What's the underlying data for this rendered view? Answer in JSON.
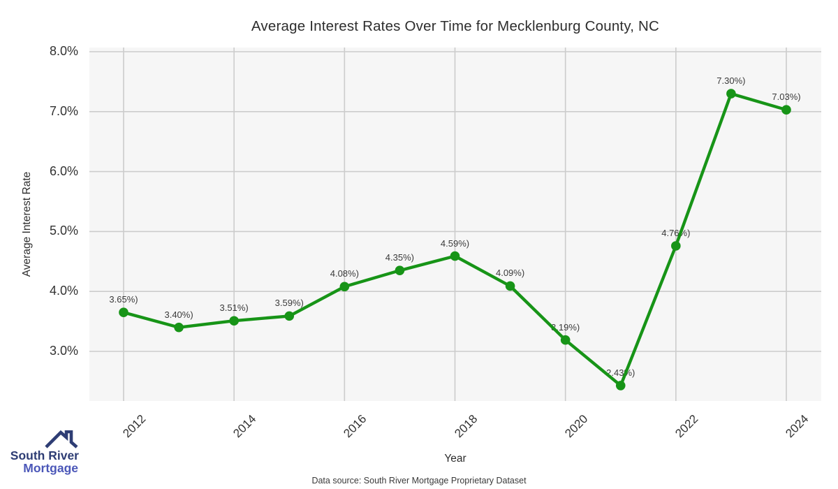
{
  "title": "Average Interest Rates Over Time for Mecklenburg County, NC",
  "chart_data": {
    "type": "line",
    "x": [
      2012,
      2013,
      2014,
      2015,
      2016,
      2017,
      2018,
      2019,
      2020,
      2021,
      2022,
      2023,
      2024
    ],
    "values": [
      3.65,
      3.4,
      3.51,
      3.59,
      4.08,
      4.35,
      4.59,
      4.09,
      3.19,
      2.43,
      4.76,
      7.3,
      7.03
    ],
    "point_labels": [
      "3.65%)",
      "3.40%)",
      "3.51%)",
      "3.59%)",
      "4.08%)",
      "4.35%)",
      "4.59%)",
      "4.09%)",
      "3.19%)",
      "2.43%)",
      "4.76%)",
      "7.30%)",
      "7.03%)"
    ],
    "title": "Average Interest Rates Over Time for Mecklenburg County, NC",
    "xlabel": "Year",
    "ylabel": "Average Interest Rate",
    "ylim": [
      2.17,
      8.07
    ],
    "xlim": [
      2011.38,
      2024.63
    ],
    "yticks": [
      {
        "value": 3.0,
        "label": "3.0%"
      },
      {
        "value": 4.0,
        "label": "4.0%"
      },
      {
        "value": 5.0,
        "label": "5.0%"
      },
      {
        "value": 6.0,
        "label": "6.0%"
      },
      {
        "value": 7.0,
        "label": "7.0%"
      },
      {
        "value": 8.0,
        "label": "8.0%"
      }
    ],
    "xticks": [
      {
        "value": 2012,
        "label": "2012"
      },
      {
        "value": 2014,
        "label": "2014"
      },
      {
        "value": 2016,
        "label": "2016"
      },
      {
        "value": 2018,
        "label": "2018"
      },
      {
        "value": 2020,
        "label": "2020"
      },
      {
        "value": 2022,
        "label": "2022"
      },
      {
        "value": 2024,
        "label": "2024"
      }
    ],
    "grid": true,
    "legend": "none",
    "colors": {
      "line": "#179417",
      "marker": "#179417",
      "panel_bg": "#f6f6f6",
      "gridline": "#cccccc",
      "text": "#2d2d2d"
    }
  },
  "footer": {
    "data_source": "Data source: South River Mortgage Proprietary Dataset"
  },
  "logo": {
    "line1": "South River",
    "line2": "Mortgage",
    "colors": {
      "navy": "#2e3d74",
      "blue": "#4b57b8"
    }
  }
}
